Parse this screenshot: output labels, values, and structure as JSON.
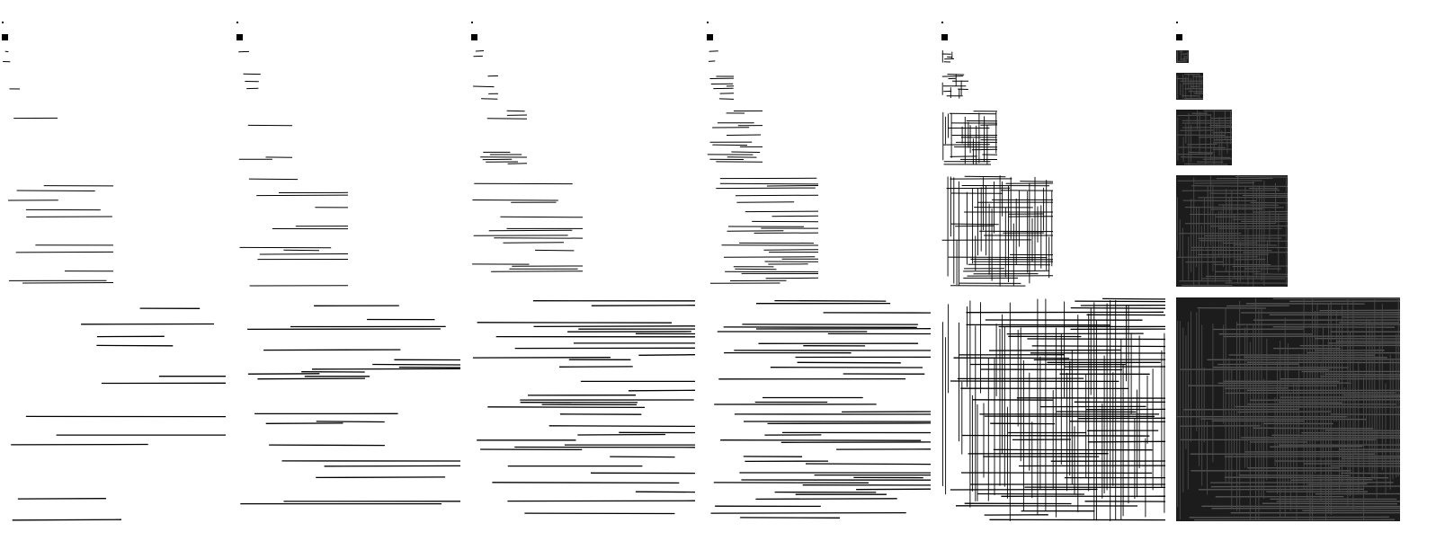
{
  "figure": {
    "columns": [
      {
        "density": 0.06,
        "vertical_strokes": 0.0
      },
      {
        "density": 0.14,
        "vertical_strokes": 0.0
      },
      {
        "density": 0.3,
        "vertical_strokes": 0.0
      },
      {
        "density": 0.48,
        "vertical_strokes": 0.02
      },
      {
        "density": 0.6,
        "vertical_strokes": 0.75
      },
      {
        "density": 0.9,
        "vertical_strokes": 0.85
      }
    ],
    "rows": [
      {
        "scale": "xs"
      },
      {
        "scale": "s"
      },
      {
        "scale": "m"
      },
      {
        "scale": "l"
      },
      {
        "scale": "xl"
      },
      {
        "scale": "xxl"
      },
      {
        "scale": "xxxl"
      }
    ],
    "colors": {
      "background": "#ffffff",
      "ink": "#000000",
      "ink_dark": "#1c1c1c"
    }
  }
}
